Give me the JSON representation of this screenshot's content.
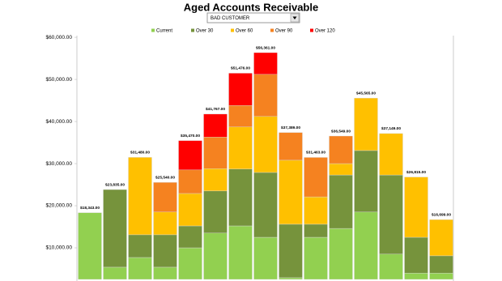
{
  "chart_data": {
    "type": "bar",
    "stacked": true,
    "title": "Aged Accounts Receivable",
    "filter": "BAD CUSTOMER",
    "legend": "top",
    "categories": [
      null,
      null,
      null,
      null,
      null,
      null,
      null,
      null,
      null,
      null,
      null,
      null,
      null,
      null,
      null
    ],
    "series": [
      {
        "name": "Current",
        "color": "#92d050",
        "values": [
          18343,
          5400,
          7700,
          5400,
          10000,
          13500,
          15200,
          12500,
          2900,
          12500,
          14600,
          18500,
          8500,
          4000,
          4000
        ]
      },
      {
        "name": "Over 30",
        "color": "#76933c",
        "values": [
          0,
          18435,
          5400,
          7700,
          5200,
          10000,
          13500,
          15400,
          12700,
          3100,
          12700,
          14600,
          18800,
          8500,
          4100
        ]
      },
      {
        "name": "Over 60",
        "color": "#ffc000",
        "values": [
          0,
          0,
          18380,
          5400,
          7700,
          5300,
          10000,
          13300,
          15200,
          6500,
          2700,
          12465,
          9849,
          14315,
          8599
        ]
      },
      {
        "name": "Over 90",
        "color": "#f58220",
        "values": [
          0,
          0,
          0,
          7040,
          5600,
          7500,
          5100,
          10000,
          6589,
          9363,
          6549,
          0,
          0,
          0,
          0
        ]
      },
      {
        "name": "Over 120",
        "color": "#ff0000",
        "values": [
          0,
          0,
          0,
          0,
          6970,
          5467,
          7676,
          5161,
          0,
          0,
          0,
          0,
          0,
          0,
          0
        ]
      }
    ],
    "totals": [
      18343,
      23835,
      31480,
      25540,
      35470,
      41767,
      51476,
      56361,
      37389,
      31463,
      36549,
      45565,
      37149,
      26815,
      16699
    ],
    "total_labels": [
      "$18,343.00",
      "$23,835.00",
      "$31,480.00",
      "$25,540.00",
      "$35,470.00",
      "$41,767.00",
      "$51,476.00",
      "$56,361.00",
      "$37,389.00",
      "$31,463.00",
      "$36,549.00",
      "$45,565.00",
      "$37,149.00",
      "$26,815.00",
      "$16,699.00"
    ],
    "ylim": [
      2500,
      60400
    ],
    "yticks": [
      {
        "value": 10000,
        "label": "$10,000.00"
      },
      {
        "value": 20000,
        "label": "$20,000.00"
      },
      {
        "value": 30000,
        "label": "$30,000.00"
      },
      {
        "value": 40000,
        "label": "$40,000.00"
      },
      {
        "value": 50000,
        "label": "$50,000.00"
      },
      {
        "value": 60000,
        "label": "$60,000.00"
      }
    ]
  }
}
